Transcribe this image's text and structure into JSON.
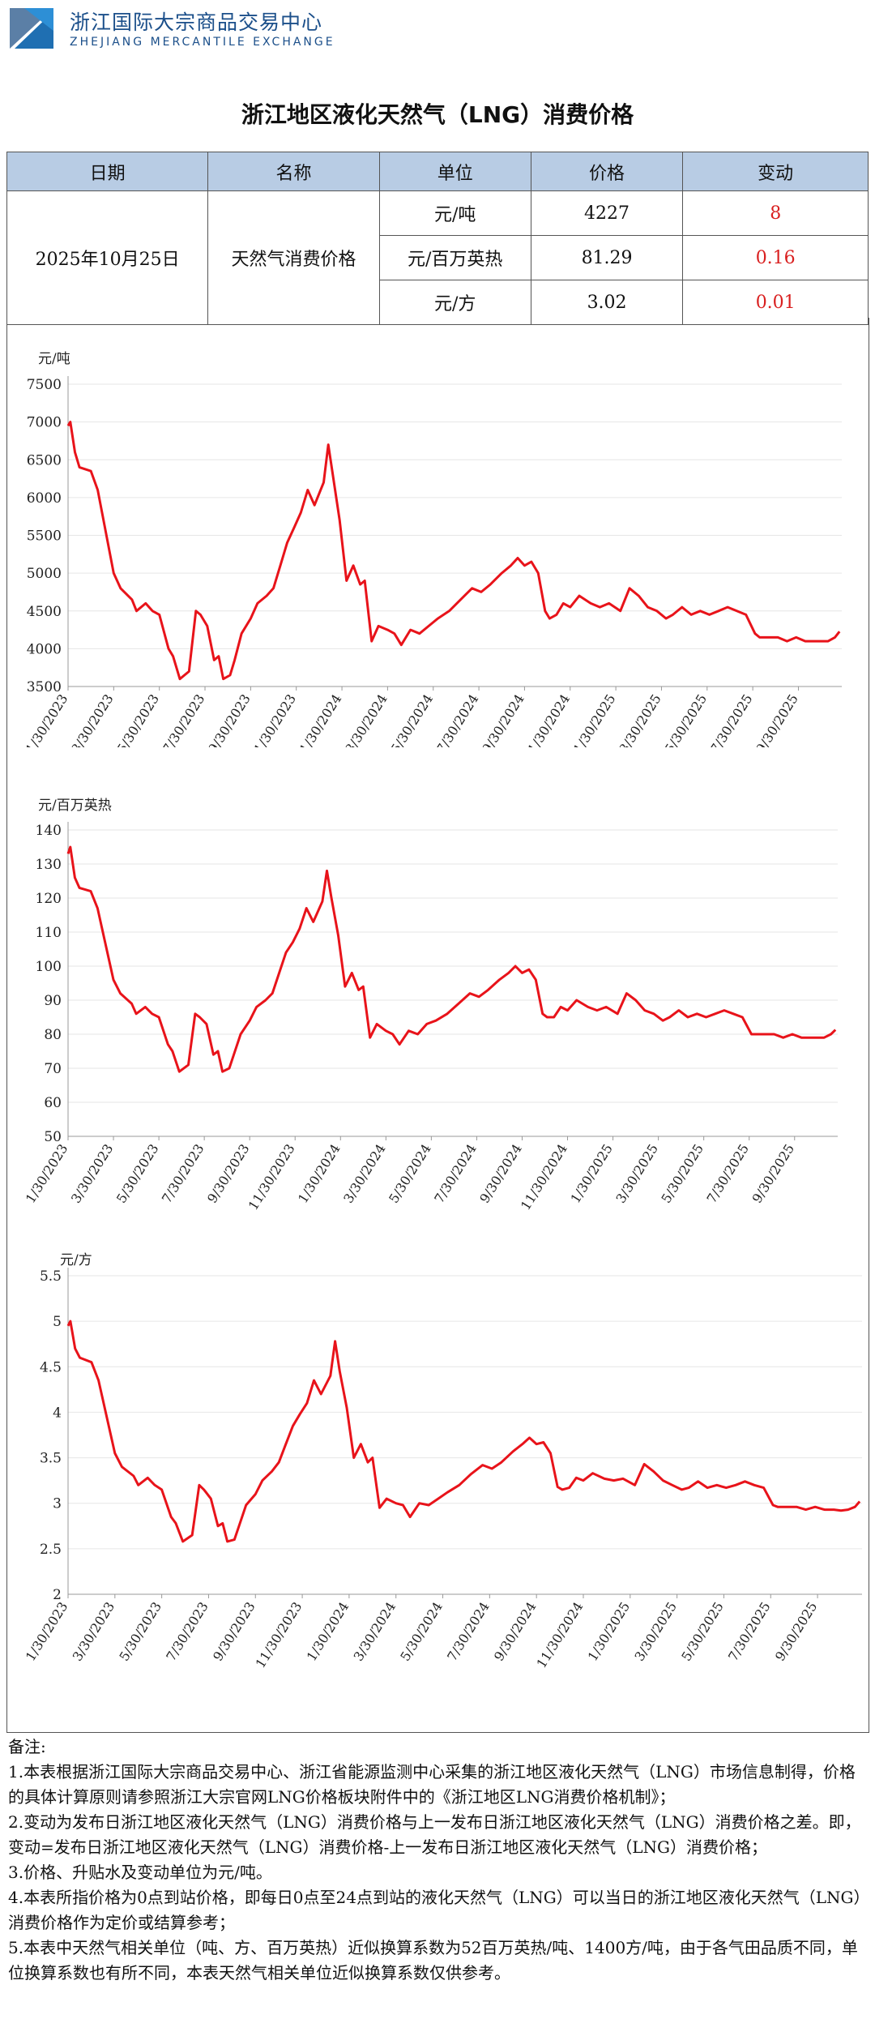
{
  "header": {
    "org_name_cn": "浙江国际大宗商品交易中心",
    "org_name_en": "ZHEJIANG MERCANTILE EXCHANGE"
  },
  "title": "浙江地区液化天然气（LNG）消费价格",
  "table": {
    "headers": [
      "日期",
      "名称",
      "单位",
      "价格",
      "变动"
    ],
    "date": "2025年10月25日",
    "name": "天然气消费价格",
    "rows": [
      {
        "unit": "元/吨",
        "price": "4227",
        "change": "8"
      },
      {
        "unit": "元/百万英热",
        "price": "81.29",
        "change": "0.16"
      },
      {
        "unit": "元/方",
        "price": "3.02",
        "change": "0.01"
      }
    ]
  },
  "line_color": "#e8131a",
  "chart_data": [
    {
      "type": "line",
      "ylabel": "元/吨",
      "ylim": [
        3500,
        7500
      ],
      "yticks": [
        3500,
        4000,
        4500,
        5000,
        5500,
        6000,
        6500,
        7000,
        7500
      ],
      "x_tick_labels": [
        "1/30/2023",
        "3/30/2023",
        "5/30/2023",
        "7/30/2023",
        "9/30/2023",
        "11/30/2023",
        "1/30/2024",
        "3/30/2024",
        "5/30/2024",
        "7/30/2024",
        "9/30/2024",
        "11/30/2024",
        "1/30/2025",
        "3/30/2025",
        "5/30/2025",
        "7/30/2025",
        "9/30/2025"
      ],
      "x_months": [
        0,
        2,
        4,
        6,
        8,
        10,
        12,
        14,
        16,
        18,
        20,
        22,
        24,
        26,
        28,
        30,
        32
      ],
      "series": [
        {
          "name": "天然气消费价格",
          "x": [
            0,
            0.1,
            0.3,
            0.5,
            1,
            1.3,
            2,
            2.3,
            2.8,
            3,
            3.4,
            3.7,
            4,
            4.4,
            4.6,
            4.9,
            5.3,
            5.6,
            5.8,
            6.1,
            6.4,
            6.6,
            6.8,
            7.1,
            7.3,
            7.6,
            8,
            8.3,
            8.7,
            9,
            9.3,
            9.6,
            9.9,
            10.2,
            10.5,
            10.8,
            11.2,
            11.4,
            11.6,
            11.9,
            12.2,
            12.5,
            12.8,
            13,
            13.3,
            13.6,
            14,
            14.3,
            14.6,
            15,
            15.4,
            15.8,
            16.2,
            16.7,
            17.2,
            17.7,
            18.1,
            18.5,
            19,
            19.4,
            19.7,
            20,
            20.3,
            20.6,
            20.9,
            21.1,
            21.4,
            21.7,
            22,
            22.4,
            22.9,
            23.3,
            23.7,
            24.2,
            24.6,
            25,
            25.4,
            25.8,
            26.2,
            26.5,
            26.9,
            27.3,
            27.7,
            28.1,
            28.5,
            28.9,
            29.3,
            29.7,
            30.1,
            30.3,
            30.7,
            31.1,
            31.5,
            31.9,
            32.3,
            32.7,
            33,
            33.3,
            33.6,
            33.8
          ],
          "y": [
            6950,
            7000,
            6600,
            6400,
            6350,
            6100,
            5000,
            4800,
            4650,
            4500,
            4600,
            4500,
            4450,
            4000,
            3900,
            3600,
            3700,
            4500,
            4450,
            4300,
            3850,
            3900,
            3600,
            3650,
            3850,
            4200,
            4400,
            4600,
            4700,
            4800,
            5100,
            5400,
            5600,
            5800,
            6100,
            5900,
            6200,
            6700,
            6300,
            5700,
            4900,
            5100,
            4850,
            4900,
            4100,
            4300,
            4250,
            4200,
            4050,
            4250,
            4200,
            4300,
            4400,
            4500,
            4650,
            4800,
            4750,
            4850,
            5000,
            5100,
            5200,
            5100,
            5150,
            5000,
            4500,
            4400,
            4450,
            4600,
            4550,
            4700,
            4600,
            4550,
            4600,
            4500,
            4800,
            4700,
            4550,
            4500,
            4400,
            4450,
            4550,
            4450,
            4500,
            4450,
            4500,
            4550,
            4500,
            4450,
            4200,
            4150,
            4150,
            4150,
            4100,
            4150,
            4100,
            4100,
            4100,
            4100,
            4150,
            4227
          ]
        }
      ]
    },
    {
      "type": "line",
      "ylabel": "元/百万英热",
      "ylim": [
        50,
        140
      ],
      "yticks": [
        50,
        60,
        70,
        80,
        90,
        100,
        110,
        120,
        130,
        140
      ],
      "x_tick_labels": [
        "1/30/2023",
        "3/30/2023",
        "5/30/2023",
        "7/30/2023",
        "9/30/2023",
        "11/30/2023",
        "1/30/2024",
        "3/30/2024",
        "5/30/2024",
        "7/30/2024",
        "9/30/2024",
        "11/30/2024",
        "1/30/2025",
        "3/30/2025",
        "5/30/2025",
        "7/30/2025",
        "9/30/2025"
      ],
      "x_months": [
        0,
        2,
        4,
        6,
        8,
        10,
        12,
        14,
        16,
        18,
        20,
        22,
        24,
        26,
        28,
        30,
        32
      ],
      "series": [
        {
          "name": "天然气消费价格",
          "x": [
            0,
            0.1,
            0.3,
            0.5,
            1,
            1.3,
            2,
            2.3,
            2.8,
            3,
            3.4,
            3.7,
            4,
            4.4,
            4.6,
            4.9,
            5.3,
            5.6,
            5.8,
            6.1,
            6.4,
            6.6,
            6.8,
            7.1,
            7.3,
            7.6,
            8,
            8.3,
            8.7,
            9,
            9.3,
            9.6,
            9.9,
            10.2,
            10.5,
            10.8,
            11.2,
            11.4,
            11.6,
            11.9,
            12.2,
            12.5,
            12.8,
            13,
            13.3,
            13.6,
            14,
            14.3,
            14.6,
            15,
            15.4,
            15.8,
            16.2,
            16.7,
            17.2,
            17.7,
            18.1,
            18.5,
            19,
            19.4,
            19.7,
            20,
            20.3,
            20.6,
            20.9,
            21.1,
            21.4,
            21.7,
            22,
            22.4,
            22.9,
            23.3,
            23.7,
            24.2,
            24.6,
            25,
            25.4,
            25.8,
            26.2,
            26.5,
            26.9,
            27.3,
            27.7,
            28.1,
            28.5,
            28.9,
            29.3,
            29.7,
            30.1,
            30.3,
            30.7,
            31.1,
            31.5,
            31.9,
            32.3,
            32.7,
            33,
            33.3,
            33.6,
            33.8
          ],
          "y": [
            133,
            135,
            126,
            123,
            122,
            117,
            96,
            92,
            89,
            86,
            88,
            86,
            85,
            77,
            75,
            69,
            71,
            86,
            85,
            83,
            74,
            75,
            69,
            70,
            74,
            80,
            84,
            88,
            90,
            92,
            98,
            104,
            107,
            111,
            117,
            113,
            119,
            128,
            120,
            109,
            94,
            98,
            93,
            94,
            79,
            83,
            81,
            80,
            77,
            81,
            80,
            83,
            84,
            86,
            89,
            92,
            91,
            93,
            96,
            98,
            100,
            98,
            99,
            96,
            86,
            85,
            85,
            88,
            87,
            90,
            88,
            87,
            88,
            86,
            92,
            90,
            87,
            86,
            84,
            85,
            87,
            85,
            86,
            85,
            86,
            87,
            86,
            85,
            80,
            80,
            80,
            80,
            79,
            80,
            79,
            79,
            79,
            79,
            80,
            81.29
          ]
        }
      ]
    },
    {
      "type": "line",
      "ylabel": "元/方",
      "ylim": [
        2,
        5.5
      ],
      "yticks": [
        2,
        2.5,
        3,
        3.5,
        4,
        4.5,
        5,
        5.5
      ],
      "x_tick_labels": [
        "1/30/2023",
        "3/30/2023",
        "5/30/2023",
        "7/30/2023",
        "9/30/2023",
        "11/30/2023",
        "1/30/2024",
        "3/30/2024",
        "5/30/2024",
        "7/30/2024",
        "9/30/2024",
        "11/30/2024",
        "1/30/2025",
        "3/30/2025",
        "5/30/2025",
        "7/30/2025",
        "9/30/2025"
      ],
      "x_months": [
        0,
        2,
        4,
        6,
        8,
        10,
        12,
        14,
        16,
        18,
        20,
        22,
        24,
        26,
        28,
        30,
        32
      ],
      "series": [
        {
          "name": "天然气消费价格",
          "x": [
            0,
            0.1,
            0.3,
            0.5,
            1,
            1.3,
            2,
            2.3,
            2.8,
            3,
            3.4,
            3.7,
            4,
            4.4,
            4.6,
            4.9,
            5.3,
            5.6,
            5.8,
            6.1,
            6.4,
            6.6,
            6.8,
            7.1,
            7.3,
            7.6,
            8,
            8.3,
            8.7,
            9,
            9.3,
            9.6,
            9.9,
            10.2,
            10.5,
            10.8,
            11.2,
            11.4,
            11.6,
            11.9,
            12.2,
            12.5,
            12.8,
            13,
            13.3,
            13.6,
            14,
            14.3,
            14.6,
            15,
            15.4,
            15.8,
            16.2,
            16.7,
            17.2,
            17.7,
            18.1,
            18.5,
            19,
            19.4,
            19.7,
            20,
            20.3,
            20.6,
            20.9,
            21.1,
            21.4,
            21.7,
            22,
            22.4,
            22.9,
            23.3,
            23.7,
            24.2,
            24.6,
            25,
            25.4,
            25.8,
            26.2,
            26.5,
            26.9,
            27.3,
            27.7,
            28.1,
            28.5,
            28.9,
            29.3,
            29.7,
            30.1,
            30.3,
            30.7,
            31.1,
            31.5,
            31.9,
            32.3,
            32.7,
            33,
            33.3,
            33.6,
            33.8
          ],
          "y": [
            4.95,
            5.0,
            4.7,
            4.6,
            4.55,
            4.35,
            3.55,
            3.4,
            3.3,
            3.2,
            3.28,
            3.2,
            3.15,
            2.85,
            2.78,
            2.58,
            2.65,
            3.2,
            3.15,
            3.05,
            2.75,
            2.78,
            2.58,
            2.6,
            2.75,
            2.98,
            3.1,
            3.25,
            3.35,
            3.45,
            3.65,
            3.85,
            3.98,
            4.1,
            4.35,
            4.2,
            4.4,
            4.78,
            4.45,
            4.05,
            3.5,
            3.65,
            3.45,
            3.5,
            2.95,
            3.05,
            3.0,
            2.98,
            2.85,
            3.0,
            2.98,
            3.05,
            3.12,
            3.2,
            3.32,
            3.42,
            3.38,
            3.45,
            3.57,
            3.65,
            3.72,
            3.65,
            3.67,
            3.55,
            3.18,
            3.15,
            3.17,
            3.28,
            3.25,
            3.33,
            3.27,
            3.25,
            3.27,
            3.2,
            3.43,
            3.35,
            3.25,
            3.2,
            3.15,
            3.17,
            3.24,
            3.17,
            3.2,
            3.17,
            3.2,
            3.24,
            3.2,
            3.17,
            2.98,
            2.96,
            2.96,
            2.96,
            2.93,
            2.96,
            2.93,
            2.93,
            2.92,
            2.93,
            2.96,
            3.02
          ]
        }
      ]
    }
  ],
  "notes": {
    "heading": "备注:",
    "items": [
      "1.本表根据浙江国际大宗商品交易中心、浙江省能源监测中心采集的浙江地区液化天然气（LNG）市场信息制得，价格的具体计算原则请参照浙江大宗官网LNG价格板块附件中的《浙江地区LNG消费价格机制》；",
      "2.变动为发布日浙江地区液化天然气（LNG）消费价格与上一发布日浙江地区液化天然气（LNG）消费价格之差。即，变动=发布日浙江地区液化天然气（LNG）消费价格-上一发布日浙江地区液化天然气（LNG）消费价格；",
      "3.价格、升贴水及变动单位为元/吨。",
      "4.本表所指价格为0点到站价格，即每日0点至24点到站的液化天然气（LNG）可以当日的浙江地区液化天然气（LNG）消费价格作为定价或结算参考；",
      "5.本表中天然气相关单位（吨、方、百万英热）近似换算系数为52百万英热/吨、1400方/吨，由于各气田品质不同，单位换算系数也有所不同，本表天然气相关单位近似换算系数仅供参考。"
    ]
  }
}
